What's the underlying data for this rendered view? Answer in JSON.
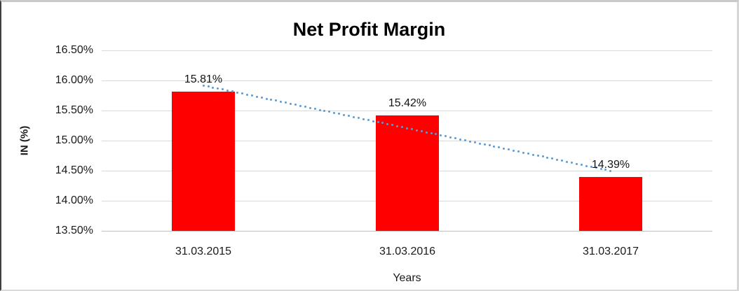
{
  "chart_data": {
    "type": "bar",
    "title": "Net Profit Margin",
    "xlabel": "Years",
    "ylabel": "IN (%)",
    "categories": [
      "31.03.2015",
      "31.03.2016",
      "31.03.2017"
    ],
    "values": [
      15.81,
      15.42,
      14.39
    ],
    "data_labels": [
      "15.81%",
      "15.42%",
      "14.39%"
    ],
    "ylim": [
      13.5,
      16.5
    ],
    "ytick_step": 0.5,
    "ytick_labels": [
      "13.50%",
      "14.00%",
      "14.50%",
      "15.00%",
      "15.50%",
      "16.00%",
      "16.50%"
    ],
    "grid": true,
    "legend_position": "none",
    "bar_color": "#ff0000",
    "gridline_color": "#d9d9d9",
    "axis_line_color": "#bfbfbf",
    "trendline": {
      "type": "linear",
      "style": "dotted",
      "color": "#5b9bd5"
    }
  }
}
